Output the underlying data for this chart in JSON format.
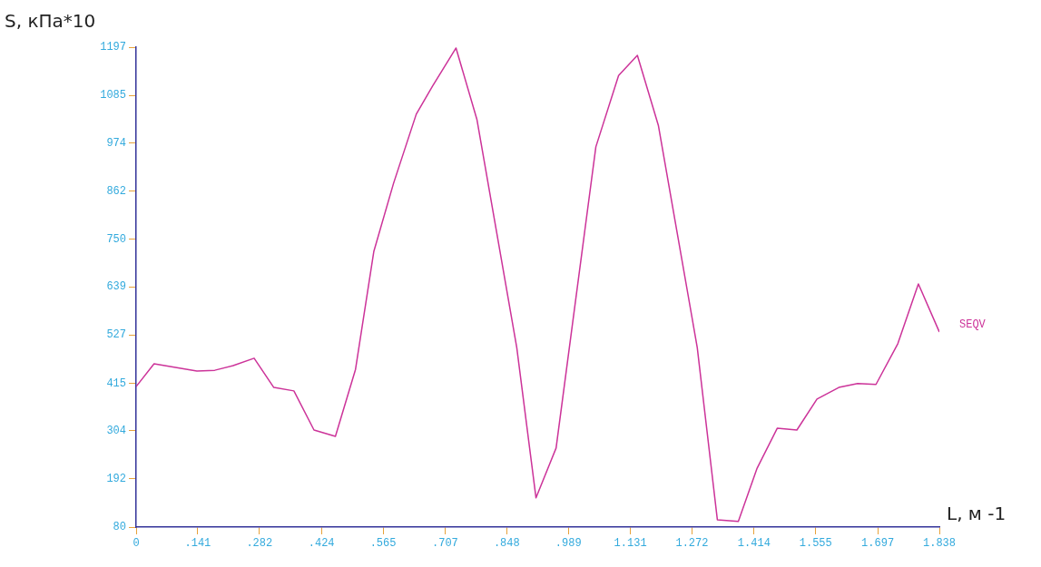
{
  "chart_data": {
    "type": "line",
    "ylabel": "S, кПа*10",
    "xlabel": "L, м -1",
    "x": [
      0,
      0.041,
      0.139,
      0.18,
      0.222,
      0.27,
      0.315,
      0.361,
      0.407,
      0.456,
      0.502,
      0.544,
      0.589,
      0.641,
      0.678,
      0.732,
      0.78,
      0.871,
      0.915,
      0.961,
      1.052,
      1.104,
      1.147,
      1.195,
      1.284,
      1.33,
      1.378,
      1.421,
      1.467,
      1.512,
      1.558,
      1.608,
      1.651,
      1.693,
      1.743,
      1.79,
      1.838
    ],
    "series": [
      {
        "name": "SEQV",
        "color": "#cc3399",
        "values": [
          407,
          460,
          443,
          445,
          456,
          473,
          405,
          397,
          306,
          291,
          447,
          722,
          880,
          1041,
          1106,
          1195,
          1028,
          498,
          148,
          264,
          965,
          1131,
          1178,
          1015,
          498,
          97,
          93,
          217,
          310,
          306,
          378,
          405,
          414,
          412,
          507,
          646,
          534
        ]
      }
    ],
    "xlim": [
      0,
      1.838
    ],
    "xticks": [
      0,
      {
        "value": 0.141,
        "label": ".141"
      },
      {
        "value": 0.282,
        "label": ".282"
      },
      {
        "value": 0.424,
        "label": ".424"
      },
      {
        "value": 0.565,
        "label": ".565"
      },
      {
        "value": 0.707,
        "label": ".707"
      },
      {
        "value": 0.848,
        "label": ".848"
      },
      {
        "value": 0.989,
        "label": ".989"
      },
      1.131,
      1.272,
      1.414,
      1.555,
      1.697,
      1.838
    ],
    "ylim": [
      80,
      1197
    ],
    "yticks": [
      80,
      192,
      304,
      415,
      527,
      639,
      750,
      862,
      974,
      1085,
      1197
    ],
    "grid": false,
    "legend": false,
    "marker": "none",
    "line_style": "solid"
  }
}
